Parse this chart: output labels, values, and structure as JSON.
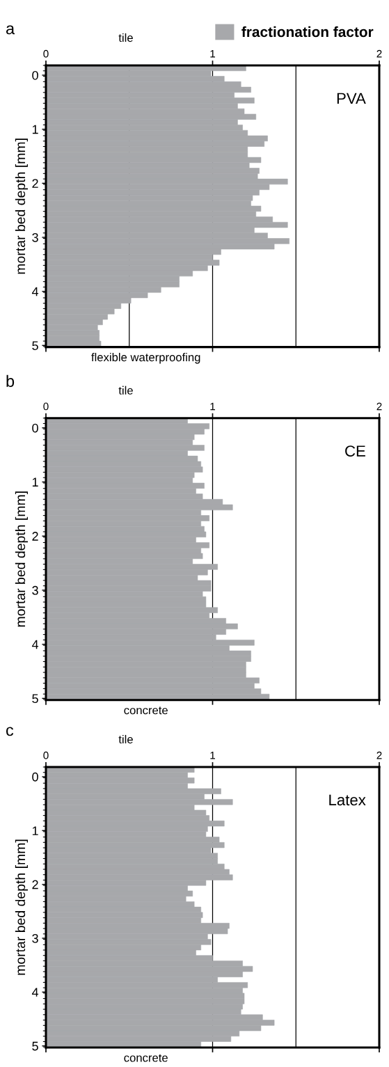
{
  "chart_data": [
    {
      "type": "bar",
      "orientation": "horizontal",
      "title": "a",
      "ylabel": "mortar bed depth [mm]",
      "x": [
        -0.13,
        -0.03,
        0.07,
        0.17,
        0.27,
        0.37,
        0.47,
        0.57,
        0.67,
        0.77,
        0.87,
        0.97,
        1.07,
        1.17,
        1.27,
        1.37,
        1.47,
        1.57,
        1.67,
        1.77,
        1.87,
        1.97,
        2.07,
        2.17,
        2.27,
        2.37,
        2.47,
        2.57,
        2.67,
        2.77,
        2.87,
        2.97,
        3.07,
        3.17,
        3.27,
        3.37,
        3.47,
        3.57,
        3.67,
        3.77,
        3.87,
        3.97,
        4.07,
        4.17,
        4.27,
        4.37,
        4.47,
        4.57,
        4.67,
        4.77,
        4.87,
        4.97
      ],
      "series": [
        {
          "name": "fractionation factor",
          "color": "#a7a8ab",
          "values": [
            1.2,
            0.99,
            1.07,
            1.17,
            1.23,
            1.13,
            1.25,
            1.15,
            1.19,
            1.26,
            1.15,
            1.18,
            1.21,
            1.33,
            1.31,
            1.21,
            1.21,
            1.29,
            1.22,
            1.28,
            1.27,
            1.45,
            1.34,
            1.28,
            1.24,
            1.23,
            1.29,
            1.26,
            1.36,
            1.45,
            1.25,
            1.33,
            1.46,
            1.37,
            1.05,
            1.0,
            1.04,
            0.97,
            0.88,
            0.8,
            0.8,
            0.69,
            0.61,
            0.51,
            0.45,
            0.41,
            0.37,
            0.34,
            0.31,
            0.32,
            0.32,
            0.33
          ]
        }
      ],
      "xlim": [
        0,
        2
      ],
      "xticks": [
        0,
        1,
        2
      ],
      "ylim": [
        5.03,
        -0.18
      ],
      "yticks": [
        0,
        1,
        2,
        3,
        4,
        5
      ],
      "ref_lines": [
        {
          "axis": "x",
          "value": 0.5,
          "color": "#000000"
        },
        {
          "axis": "x",
          "value": 1,
          "color": "#000000"
        },
        {
          "axis": "x",
          "value": 1.5,
          "color": "#000000"
        }
      ],
      "legend": "top right",
      "annotations": [
        "tile",
        "flexible waterproofing",
        "PVA"
      ]
    },
    {
      "type": "bar",
      "orientation": "horizontal",
      "title": "b",
      "ylabel": "mortar bed depth [mm]",
      "x": [
        -0.13,
        -0.03,
        0.07,
        0.17,
        0.27,
        0.37,
        0.47,
        0.57,
        0.67,
        0.77,
        0.87,
        0.97,
        1.07,
        1.17,
        1.27,
        1.37,
        1.47,
        1.57,
        1.67,
        1.77,
        1.87,
        1.97,
        2.07,
        2.17,
        2.27,
        2.37,
        2.47,
        2.57,
        2.67,
        2.77,
        2.87,
        2.97,
        3.07,
        3.17,
        3.27,
        3.37,
        3.47,
        3.57,
        3.67,
        3.77,
        3.87,
        3.97,
        4.07,
        4.17,
        4.27,
        4.37,
        4.47,
        4.57,
        4.67,
        4.77,
        4.87,
        4.97
      ],
      "series": [
        {
          "color": "#a7a8ab",
          "values": [
            0.85,
            0.98,
            0.95,
            0.89,
            0.88,
            0.95,
            0.85,
            0.91,
            0.93,
            0.94,
            0.89,
            0.88,
            0.95,
            0.9,
            0.94,
            1.06,
            1.12,
            0.93,
            0.98,
            0.93,
            0.95,
            0.96,
            0.9,
            0.98,
            0.93,
            0.94,
            0.88,
            1.03,
            0.97,
            0.91,
            0.99,
            0.99,
            0.94,
            0.96,
            0.96,
            1.03,
            0.98,
            1.08,
            1.15,
            1.08,
            1.02,
            1.25,
            1.1,
            1.23,
            1.23,
            1.2,
            1.2,
            1.2,
            1.28,
            1.25,
            1.29,
            1.34
          ]
        }
      ],
      "xlim": [
        0,
        2
      ],
      "xticks": [
        0,
        1,
        2
      ],
      "ylim": [
        5.03,
        -0.18
      ],
      "yticks": [
        0,
        1,
        2,
        3,
        4,
        5
      ],
      "ref_lines": [
        {
          "axis": "x",
          "value": 1,
          "color": "#000000"
        },
        {
          "axis": "x",
          "value": 1.5,
          "color": "#000000"
        }
      ],
      "annotations": [
        "tile",
        "concrete",
        "CE"
      ]
    },
    {
      "type": "bar",
      "orientation": "horizontal",
      "title": "c",
      "ylabel": "mortar bed depth [mm]",
      "x": [
        -0.13,
        -0.03,
        0.07,
        0.17,
        0.27,
        0.37,
        0.47,
        0.57,
        0.67,
        0.77,
        0.87,
        0.97,
        1.07,
        1.17,
        1.27,
        1.37,
        1.47,
        1.57,
        1.67,
        1.77,
        1.87,
        1.97,
        2.07,
        2.17,
        2.27,
        2.37,
        2.47,
        2.57,
        2.67,
        2.77,
        2.87,
        2.97,
        3.07,
        3.17,
        3.27,
        3.37,
        3.47,
        3.57,
        3.67,
        3.77,
        3.87,
        3.97,
        4.07,
        4.17,
        4.27,
        4.37,
        4.47,
        4.57,
        4.67,
        4.77,
        4.87,
        4.97
      ],
      "series": [
        {
          "color": "#a7a8ab",
          "values": [
            0.89,
            0.85,
            0.89,
            0.85,
            1.05,
            0.95,
            1.12,
            0.89,
            0.96,
            0.98,
            1.07,
            0.97,
            0.96,
            1.04,
            1.07,
            0.99,
            1.03,
            1.03,
            1.07,
            1.1,
            1.12,
            0.96,
            0.85,
            0.88,
            0.84,
            0.89,
            0.93,
            0.94,
            0.93,
            1.1,
            1.09,
            0.97,
            0.99,
            0.93,
            0.9,
            1.0,
            1.18,
            1.24,
            1.18,
            1.03,
            1.21,
            1.18,
            1.19,
            1.19,
            1.18,
            1.17,
            1.3,
            1.37,
            1.29,
            1.16,
            1.11,
            0.93
          ]
        }
      ],
      "xlim": [
        0,
        2
      ],
      "xticks": [
        0,
        1,
        2
      ],
      "ylim": [
        5.03,
        -0.18
      ],
      "yticks": [
        0,
        1,
        2,
        3,
        4,
        5
      ],
      "ref_lines": [
        {
          "axis": "x",
          "value": 1,
          "color": "#000000"
        },
        {
          "axis": "x",
          "value": 1.5,
          "color": "#000000"
        }
      ],
      "annotations": [
        "tile",
        "concrete",
        "Latex"
      ]
    }
  ]
}
